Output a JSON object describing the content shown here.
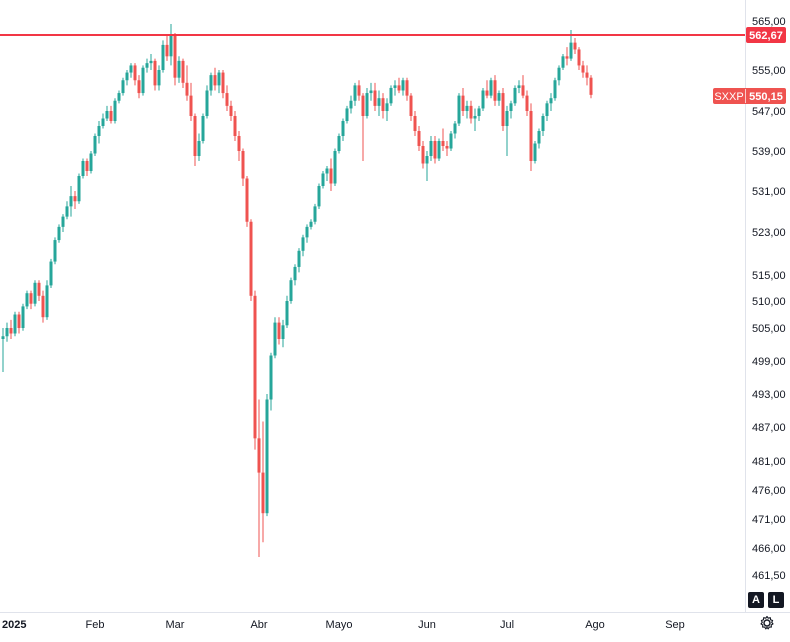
{
  "chart_data": {
    "type": "candlestick",
    "symbol": "SXXP",
    "last_price": "550,15",
    "resistance_level": "562,67",
    "resistance_value": 562.67,
    "last_value": 550.15,
    "ylim": [
      459,
      567
    ],
    "scale": "log",
    "y_ticks": [
      {
        "value": 565,
        "label": "565,00"
      },
      {
        "value": 555,
        "label": "555,00"
      },
      {
        "value": 547,
        "label": "547,00"
      },
      {
        "value": 539,
        "label": "539,00"
      },
      {
        "value": 531,
        "label": "531,00"
      },
      {
        "value": 523,
        "label": "523,00"
      },
      {
        "value": 515,
        "label": "515,00"
      },
      {
        "value": 510,
        "label": "510,00"
      },
      {
        "value": 505,
        "label": "505,00"
      },
      {
        "value": 499,
        "label": "499,00"
      },
      {
        "value": 493,
        "label": "493,00"
      },
      {
        "value": 487,
        "label": "487,00"
      },
      {
        "value": 481,
        "label": "481,00"
      },
      {
        "value": 476,
        "label": "476,00"
      },
      {
        "value": 471,
        "label": "471,00"
      },
      {
        "value": 466,
        "label": "466,00"
      },
      {
        "value": 461.5,
        "label": "461,50"
      }
    ],
    "x_ticks": [
      {
        "index": 0,
        "label": "2025",
        "bold": true
      },
      {
        "index": 23,
        "label": "Feb"
      },
      {
        "index": 43,
        "label": "Mar"
      },
      {
        "index": 64,
        "label": "Abr"
      },
      {
        "index": 84,
        "label": "Mayo"
      },
      {
        "index": 106,
        "label": "Jun"
      },
      {
        "index": 126,
        "label": "Jul"
      },
      {
        "index": 148,
        "label": "Ago"
      },
      {
        "index": 168,
        "label": "Sep"
      }
    ],
    "candles": [
      [
        503.0,
        505.0,
        497.0,
        503.5
      ],
      [
        503.5,
        506.0,
        502.5,
        505.0
      ],
      [
        505.0,
        506.5,
        503.0,
        504.0
      ],
      [
        504.0,
        508.0,
        503.5,
        507.5
      ],
      [
        507.5,
        508.0,
        504.0,
        505.0
      ],
      [
        505.0,
        509.5,
        504.5,
        509.0
      ],
      [
        509.0,
        512.0,
        508.5,
        511.5
      ],
      [
        511.5,
        512.0,
        508.5,
        509.5
      ],
      [
        509.5,
        514.0,
        509.0,
        513.5
      ],
      [
        513.5,
        514.0,
        510.0,
        511.0
      ],
      [
        511.0,
        512.0,
        506.0,
        507.0
      ],
      [
        507.0,
        514.0,
        506.5,
        513.0
      ],
      [
        513.0,
        518.0,
        512.5,
        517.5
      ],
      [
        517.5,
        522.0,
        517.0,
        521.5
      ],
      [
        521.5,
        524.5,
        521.0,
        524.0
      ],
      [
        524.0,
        526.5,
        523.0,
        526.0
      ],
      [
        526.0,
        529.0,
        525.5,
        528.0
      ],
      [
        528.0,
        532.0,
        526.0,
        530.0
      ],
      [
        530.0,
        531.0,
        527.5,
        529.0
      ],
      [
        529.0,
        534.5,
        528.5,
        534.0
      ],
      [
        534.0,
        537.5,
        533.5,
        537.0
      ],
      [
        537.0,
        537.5,
        534.0,
        535.0
      ],
      [
        535.0,
        539.0,
        534.5,
        538.5
      ],
      [
        538.5,
        542.5,
        538.0,
        542.0
      ],
      [
        542.0,
        545.0,
        540.5,
        544.0
      ],
      [
        544.0,
        546.5,
        543.5,
        545.5
      ],
      [
        545.5,
        548.0,
        545.0,
        547.0
      ],
      [
        547.0,
        548.0,
        544.5,
        545.0
      ],
      [
        545.0,
        549.5,
        544.5,
        549.0
      ],
      [
        549.0,
        551.0,
        548.5,
        550.5
      ],
      [
        550.5,
        553.5,
        550.0,
        553.0
      ],
      [
        553.0,
        555.0,
        552.0,
        554.5
      ],
      [
        554.5,
        556.5,
        553.5,
        556.0
      ],
      [
        556.0,
        556.5,
        552.0,
        553.0
      ],
      [
        553.0,
        554.0,
        549.5,
        550.5
      ],
      [
        550.5,
        556.0,
        550.0,
        555.5
      ],
      [
        555.5,
        557.5,
        554.5,
        556.5
      ],
      [
        556.5,
        558.5,
        555.0,
        557.0
      ],
      [
        557.0,
        557.5,
        551.0,
        552.0
      ],
      [
        552.0,
        556.0,
        551.0,
        555.0
      ],
      [
        555.0,
        561.5,
        554.5,
        560.5
      ],
      [
        560.5,
        562.5,
        557.0,
        558.0
      ],
      [
        558.0,
        564.5,
        556.0,
        562.5
      ],
      [
        562.5,
        563.0,
        552.0,
        553.5
      ],
      [
        553.5,
        558.0,
        552.5,
        557.0
      ],
      [
        557.0,
        557.5,
        551.5,
        552.5
      ],
      [
        552.5,
        556.0,
        549.0,
        550.0
      ],
      [
        550.0,
        552.5,
        545.0,
        546.0
      ],
      [
        546.0,
        546.5,
        536.0,
        538.0
      ],
      [
        538.0,
        542.5,
        537.0,
        541.0
      ],
      [
        541.0,
        546.5,
        540.5,
        546.0
      ],
      [
        546.0,
        552.0,
        545.5,
        551.0
      ],
      [
        551.0,
        554.5,
        550.0,
        554.0
      ],
      [
        554.0,
        555.5,
        551.0,
        552.0
      ],
      [
        552.0,
        555.0,
        550.5,
        554.5
      ],
      [
        554.5,
        555.0,
        549.5,
        550.5
      ],
      [
        550.5,
        552.0,
        547.0,
        548.0
      ],
      [
        548.0,
        549.0,
        545.0,
        546.0
      ],
      [
        546.0,
        547.0,
        541.0,
        542.0
      ],
      [
        542.0,
        543.0,
        537.0,
        539.0
      ],
      [
        539.0,
        539.5,
        532.0,
        533.5
      ],
      [
        533.5,
        534.0,
        524.0,
        525.0
      ],
      [
        525.0,
        525.5,
        510.0,
        511.0
      ],
      [
        511.0,
        512.0,
        483.0,
        485.0
      ],
      [
        485.0,
        492.0,
        464.5,
        479.0
      ],
      [
        479.0,
        488.0,
        467.0,
        472.0
      ],
      [
        472.0,
        493.0,
        471.5,
        492.0
      ],
      [
        492.0,
        500.5,
        490.0,
        500.0
      ],
      [
        500.0,
        507.0,
        499.5,
        506.0
      ],
      [
        506.0,
        507.0,
        502.0,
        503.0
      ],
      [
        503.0,
        506.5,
        501.5,
        505.5
      ],
      [
        505.5,
        511.0,
        505.0,
        510.0
      ],
      [
        510.0,
        514.5,
        509.5,
        514.0
      ],
      [
        514.0,
        517.0,
        513.0,
        516.5
      ],
      [
        516.5,
        520.0,
        515.5,
        519.5
      ],
      [
        519.5,
        522.5,
        518.5,
        522.0
      ],
      [
        522.0,
        524.5,
        521.0,
        524.0
      ],
      [
        524.0,
        525.5,
        523.5,
        525.0
      ],
      [
        525.0,
        528.5,
        524.5,
        528.0
      ],
      [
        528.0,
        532.5,
        527.5,
        532.0
      ],
      [
        532.0,
        535.0,
        531.5,
        534.5
      ],
      [
        534.5,
        536.0,
        533.0,
        535.5
      ],
      [
        535.5,
        537.5,
        531.0,
        532.5
      ],
      [
        532.5,
        539.5,
        532.0,
        539.0
      ],
      [
        539.0,
        542.5,
        538.5,
        542.0
      ],
      [
        542.0,
        545.5,
        541.0,
        545.0
      ],
      [
        545.0,
        548.0,
        544.5,
        547.5
      ],
      [
        547.5,
        550.0,
        546.5,
        549.0
      ],
      [
        549.0,
        552.5,
        548.0,
        552.0
      ],
      [
        552.0,
        553.0,
        549.0,
        550.0
      ],
      [
        550.0,
        550.5,
        537.0,
        546.0
      ],
      [
        546.0,
        551.5,
        545.5,
        550.5
      ],
      [
        550.5,
        552.5,
        549.0,
        551.0
      ],
      [
        551.0,
        552.5,
        547.0,
        548.0
      ],
      [
        548.0,
        551.0,
        546.0,
        549.5
      ],
      [
        549.5,
        550.5,
        545.5,
        547.0
      ],
      [
        547.0,
        549.5,
        545.0,
        548.5
      ],
      [
        548.5,
        552.0,
        548.0,
        551.5
      ],
      [
        551.5,
        553.0,
        550.0,
        552.0
      ],
      [
        552.0,
        553.5,
        550.5,
        551.0
      ],
      [
        551.0,
        553.5,
        550.0,
        553.0
      ],
      [
        553.0,
        553.5,
        549.0,
        550.0
      ],
      [
        550.0,
        550.5,
        545.0,
        546.0
      ],
      [
        546.0,
        547.0,
        542.0,
        543.0
      ],
      [
        543.0,
        544.0,
        539.0,
        540.0
      ],
      [
        540.0,
        541.0,
        535.5,
        536.5
      ],
      [
        536.5,
        539.0,
        533.0,
        538.0
      ],
      [
        538.0,
        542.0,
        537.0,
        541.0
      ],
      [
        541.0,
        542.0,
        536.5,
        537.5
      ],
      [
        537.5,
        541.5,
        537.0,
        541.0
      ],
      [
        541.0,
        543.5,
        539.0,
        540.0
      ],
      [
        540.0,
        541.0,
        538.0,
        539.5
      ],
      [
        539.5,
        543.0,
        539.0,
        542.5
      ],
      [
        542.5,
        545.0,
        541.5,
        544.5
      ],
      [
        544.5,
        550.5,
        544.0,
        550.0
      ],
      [
        550.0,
        551.5,
        546.0,
        547.0
      ],
      [
        547.0,
        549.0,
        545.5,
        548.0
      ],
      [
        548.0,
        549.0,
        544.5,
        545.5
      ],
      [
        545.5,
        547.5,
        543.0,
        546.0
      ],
      [
        546.0,
        548.0,
        545.0,
        547.5
      ],
      [
        547.5,
        551.5,
        547.0,
        551.0
      ],
      [
        551.0,
        553.0,
        549.5,
        550.0
      ],
      [
        550.0,
        553.5,
        549.5,
        553.0
      ],
      [
        553.0,
        554.0,
        548.0,
        549.0
      ],
      [
        549.0,
        551.0,
        548.0,
        550.5
      ],
      [
        550.5,
        551.5,
        543.0,
        544.0
      ],
      [
        544.0,
        548.0,
        538.0,
        547.0
      ],
      [
        547.0,
        549.0,
        545.5,
        548.5
      ],
      [
        548.5,
        552.0,
        548.0,
        551.5
      ],
      [
        551.5,
        553.0,
        550.5,
        552.0
      ],
      [
        552.0,
        554.0,
        549.5,
        550.0
      ],
      [
        550.0,
        551.0,
        546.0,
        547.0
      ],
      [
        547.0,
        548.5,
        535.0,
        537.0
      ],
      [
        537.0,
        541.0,
        536.5,
        540.5
      ],
      [
        540.5,
        543.5,
        539.5,
        543.0
      ],
      [
        543.0,
        546.5,
        542.0,
        546.0
      ],
      [
        546.0,
        549.0,
        545.0,
        548.5
      ],
      [
        548.5,
        550.5,
        547.0,
        549.5
      ],
      [
        549.5,
        553.5,
        549.0,
        553.0
      ],
      [
        553.0,
        556.0,
        552.0,
        555.5
      ],
      [
        555.5,
        558.5,
        555.0,
        558.0
      ],
      [
        558.0,
        560.0,
        556.0,
        557.5
      ],
      [
        557.5,
        563.5,
        557.0,
        561.0
      ],
      [
        561.0,
        562.0,
        558.5,
        559.5
      ],
      [
        559.5,
        560.0,
        555.0,
        556.0
      ],
      [
        556.0,
        557.0,
        553.5,
        554.5
      ],
      [
        554.5,
        556.0,
        552.0,
        553.5
      ],
      [
        553.5,
        554.0,
        549.5,
        550.15
      ]
    ]
  },
  "y_axis": {
    "label_resistance": "562,67",
    "label_symbol": "SXXP",
    "label_last": "550,15"
  },
  "controls": {
    "auto_label": "A",
    "log_label": "L"
  },
  "colors": {
    "up": "#26a69a",
    "down": "#ef5350",
    "resistance": "#f23645",
    "symbol_tag": "#ef5350",
    "axis_border": "#e0e3eb"
  }
}
